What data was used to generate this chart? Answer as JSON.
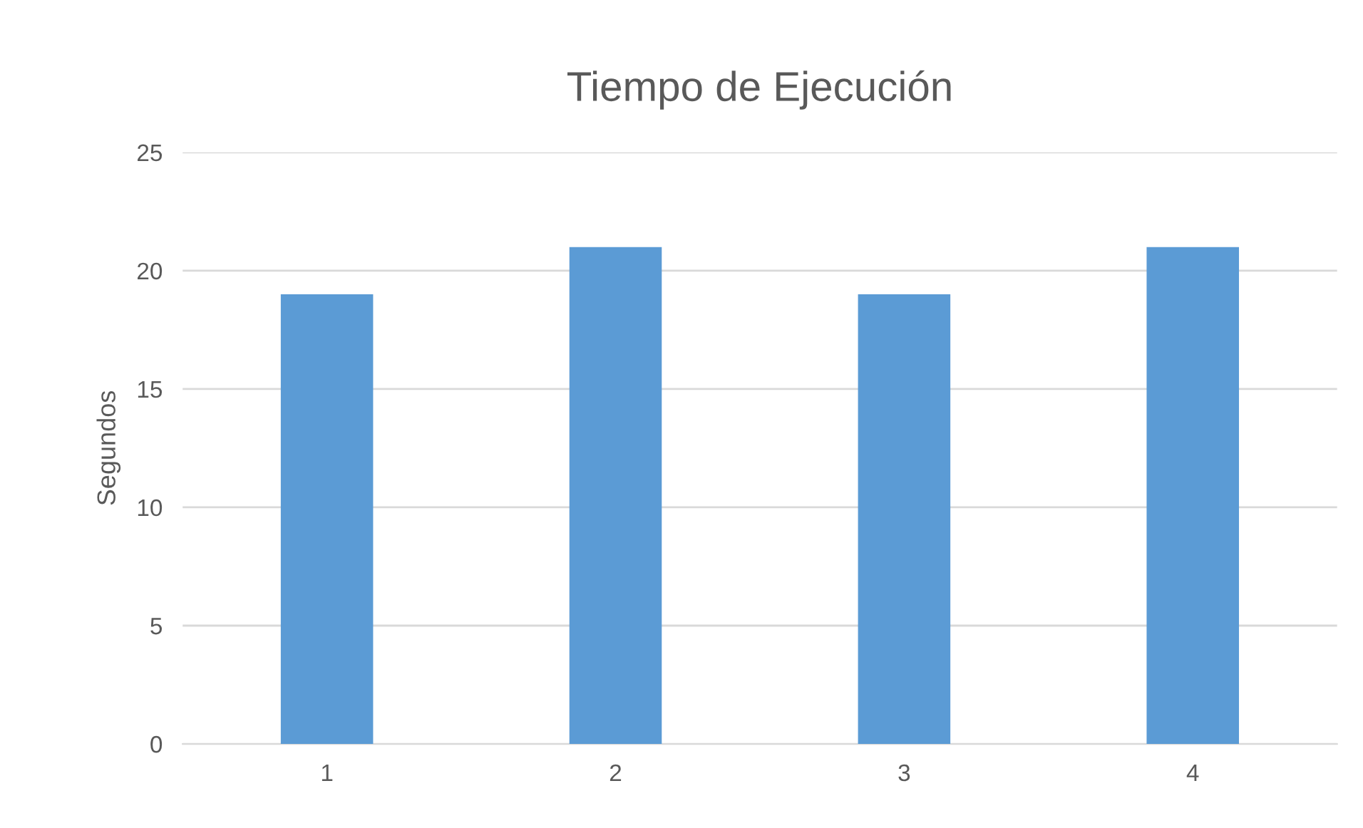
{
  "chart_data": {
    "type": "bar",
    "title": "Tiempo de Ejecución",
    "ylabel": "Segundos",
    "categories": [
      "1",
      "2",
      "3",
      "4"
    ],
    "values": [
      19,
      21,
      19,
      21
    ],
    "color": "#5b9bd5",
    "ylim": [
      0,
      25
    ],
    "yticks": [
      0,
      5,
      10,
      15,
      20,
      25
    ],
    "grid": "y",
    "legend": false
  }
}
